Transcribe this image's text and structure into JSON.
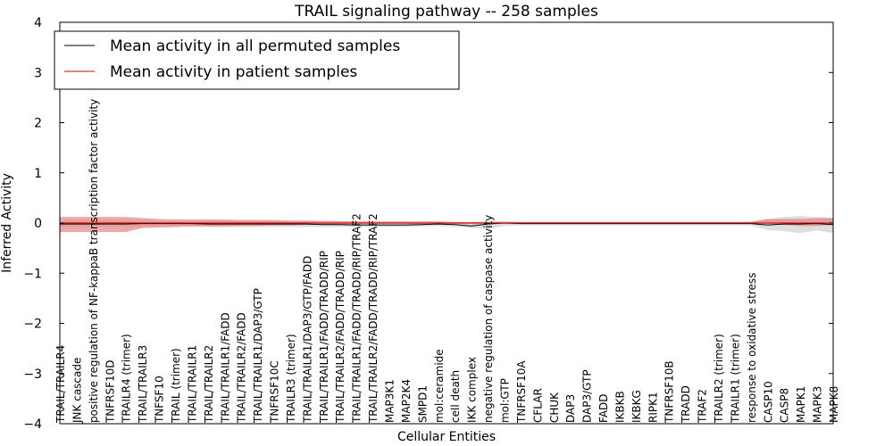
{
  "chart_data": {
    "type": "line",
    "title": "TRAIL signaling pathway -- 258 samples",
    "xlabel": "Cellular Entities",
    "ylabel": "Inferred Activity",
    "ylim": [
      -4,
      4
    ],
    "yticks": [
      4,
      3,
      2,
      1,
      0,
      -1,
      -2,
      -3,
      -4
    ],
    "ytick_labels": [
      "4",
      "3",
      "2",
      "1",
      "0",
      "−1",
      "−2",
      "−3",
      "−4"
    ],
    "legend_position": "top-left",
    "categories": [
      "TRAIL/TRAILR4",
      "JNK cascade",
      "positive regulation of NF-kappaB transcription factor activity",
      "TNFRSF10D",
      "TRAILR4 (trimer)",
      "TRAIL/TRAILR3",
      "TNFSF10",
      "TRAIL (trimer)",
      "TRAIL/TRAILR1",
      "TRAIL/TRAILR2",
      "TRAIL/TRAILR1/FADD",
      "TRAIL/TRAILR2/FADD",
      "TRAIL/TRAILR1/DAP3/GTP",
      "TNFRSF10C",
      "TRAILR3 (trimer)",
      "TRAIL/TRAILR1/DAP3/GTP/FADD",
      "TRAIL/TRAILR1/FADD/TRADD/RIP",
      "TRAIL/TRAILR2/FADD/TRADD/RIP",
      "TRAIL/TRAILR1/FADD/TRADD/RIP/TRAF2",
      "TRAIL/TRAILR2/FADD/TRADD/RIP/TRAF2",
      "MAP3K1",
      "MAP2K4",
      "SMPD1",
      "mol:ceramide",
      "cell death",
      "IKK complex",
      "negative regulation of caspase activity",
      "mol:GTP",
      "TNFRSF10A",
      "CFLAR",
      "CHUK",
      "DAP3",
      "DAP3/GTP",
      "FADD",
      "IKBKB",
      "IKBKG",
      "RIPK1",
      "TNFRSF10B",
      "TRADD",
      "TRAF2",
      "TRAILR2 (trimer)",
      "TRAILR1 (trimer)",
      "response to oxidative stress",
      "CASP10",
      "CASP8",
      "MAPK1",
      "MAPK3",
      "MAPK8"
    ],
    "series": [
      {
        "name": "Mean activity in all permuted samples",
        "color": "#000000",
        "band_color": "#c8c8c8",
        "values": [
          -0.02,
          -0.02,
          -0.02,
          -0.02,
          -0.02,
          -0.01,
          -0.01,
          -0.01,
          -0.01,
          -0.02,
          -0.02,
          -0.02,
          -0.02,
          -0.02,
          -0.02,
          -0.02,
          -0.03,
          -0.03,
          -0.04,
          -0.04,
          -0.04,
          -0.04,
          -0.03,
          -0.02,
          -0.03,
          -0.06,
          -0.02,
          0.0,
          -0.01,
          -0.01,
          -0.01,
          -0.01,
          -0.01,
          -0.01,
          -0.01,
          -0.01,
          -0.01,
          -0.01,
          -0.01,
          -0.01,
          -0.01,
          -0.01,
          -0.01,
          -0.04,
          -0.02,
          -0.02,
          -0.01,
          -0.03
        ],
        "band_lower": [
          -0.08,
          -0.08,
          -0.08,
          -0.08,
          -0.08,
          -0.08,
          -0.06,
          -0.06,
          -0.06,
          -0.08,
          -0.08,
          -0.08,
          -0.08,
          -0.08,
          -0.08,
          -0.08,
          -0.08,
          -0.08,
          -0.08,
          -0.08,
          -0.08,
          -0.08,
          -0.07,
          -0.06,
          -0.08,
          -0.1,
          -0.12,
          -0.06,
          -0.05,
          -0.05,
          -0.05,
          -0.05,
          -0.05,
          -0.05,
          -0.05,
          -0.05,
          -0.05,
          -0.05,
          -0.05,
          -0.05,
          -0.05,
          -0.05,
          -0.05,
          -0.14,
          -0.16,
          -0.2,
          -0.15,
          -0.2
        ],
        "band_upper": [
          0.05,
          0.05,
          0.05,
          0.05,
          0.05,
          0.05,
          0.04,
          0.04,
          0.04,
          0.05,
          0.05,
          0.05,
          0.05,
          0.05,
          0.04,
          0.04,
          0.04,
          0.04,
          0.03,
          0.03,
          0.03,
          0.03,
          0.03,
          0.03,
          0.02,
          0.02,
          0.04,
          0.04,
          0.02,
          0.02,
          0.02,
          0.02,
          0.02,
          0.02,
          0.02,
          0.02,
          0.02,
          0.02,
          0.02,
          0.02,
          0.02,
          0.02,
          0.03,
          0.08,
          0.12,
          0.14,
          0.12,
          0.1
        ]
      },
      {
        "name": "Mean activity in patient samples",
        "color": "#cc0000",
        "band_color": "#e88080",
        "values": [
          0.0,
          0.0,
          0.0,
          0.0,
          0.0,
          0.0,
          0.0,
          0.0,
          0.0,
          0.0,
          0.0,
          0.0,
          0.0,
          0.0,
          0.0,
          0.0,
          0.0,
          0.0,
          0.0,
          0.0,
          0.0,
          0.0,
          0.0,
          0.0,
          0.0,
          0.0,
          0.0,
          0.0,
          0.0,
          0.0,
          0.0,
          0.0,
          0.0,
          0.0,
          0.0,
          0.0,
          0.0,
          0.0,
          0.0,
          0.0,
          0.0,
          0.0,
          0.0,
          0.0,
          0.0,
          0.0,
          0.0,
          0.0
        ],
        "band_lower": [
          -0.18,
          -0.18,
          -0.18,
          -0.18,
          -0.18,
          -0.1,
          -0.09,
          -0.08,
          -0.07,
          -0.07,
          -0.07,
          -0.06,
          -0.06,
          -0.05,
          -0.05,
          -0.04,
          -0.03,
          -0.03,
          -0.02,
          -0.02,
          -0.02,
          -0.02,
          -0.02,
          -0.02,
          -0.02,
          -0.02,
          -0.02,
          -0.02,
          -0.02,
          -0.02,
          -0.02,
          -0.02,
          -0.02,
          -0.02,
          -0.02,
          -0.02,
          -0.02,
          -0.02,
          -0.02,
          -0.02,
          -0.02,
          -0.02,
          -0.02,
          -0.02,
          -0.04,
          -0.06,
          -0.06,
          -0.04
        ],
        "band_upper": [
          0.12,
          0.12,
          0.12,
          0.12,
          0.12,
          0.1,
          0.08,
          0.07,
          0.07,
          0.07,
          0.07,
          0.06,
          0.06,
          0.06,
          0.05,
          0.05,
          0.04,
          0.04,
          0.03,
          0.03,
          0.03,
          0.03,
          0.03,
          0.03,
          0.02,
          0.02,
          0.02,
          0.02,
          0.02,
          0.02,
          0.02,
          0.02,
          0.02,
          0.02,
          0.02,
          0.02,
          0.02,
          0.02,
          0.02,
          0.02,
          0.02,
          0.02,
          0.02,
          0.08,
          0.08,
          0.08,
          0.1,
          0.1
        ]
      }
    ]
  }
}
